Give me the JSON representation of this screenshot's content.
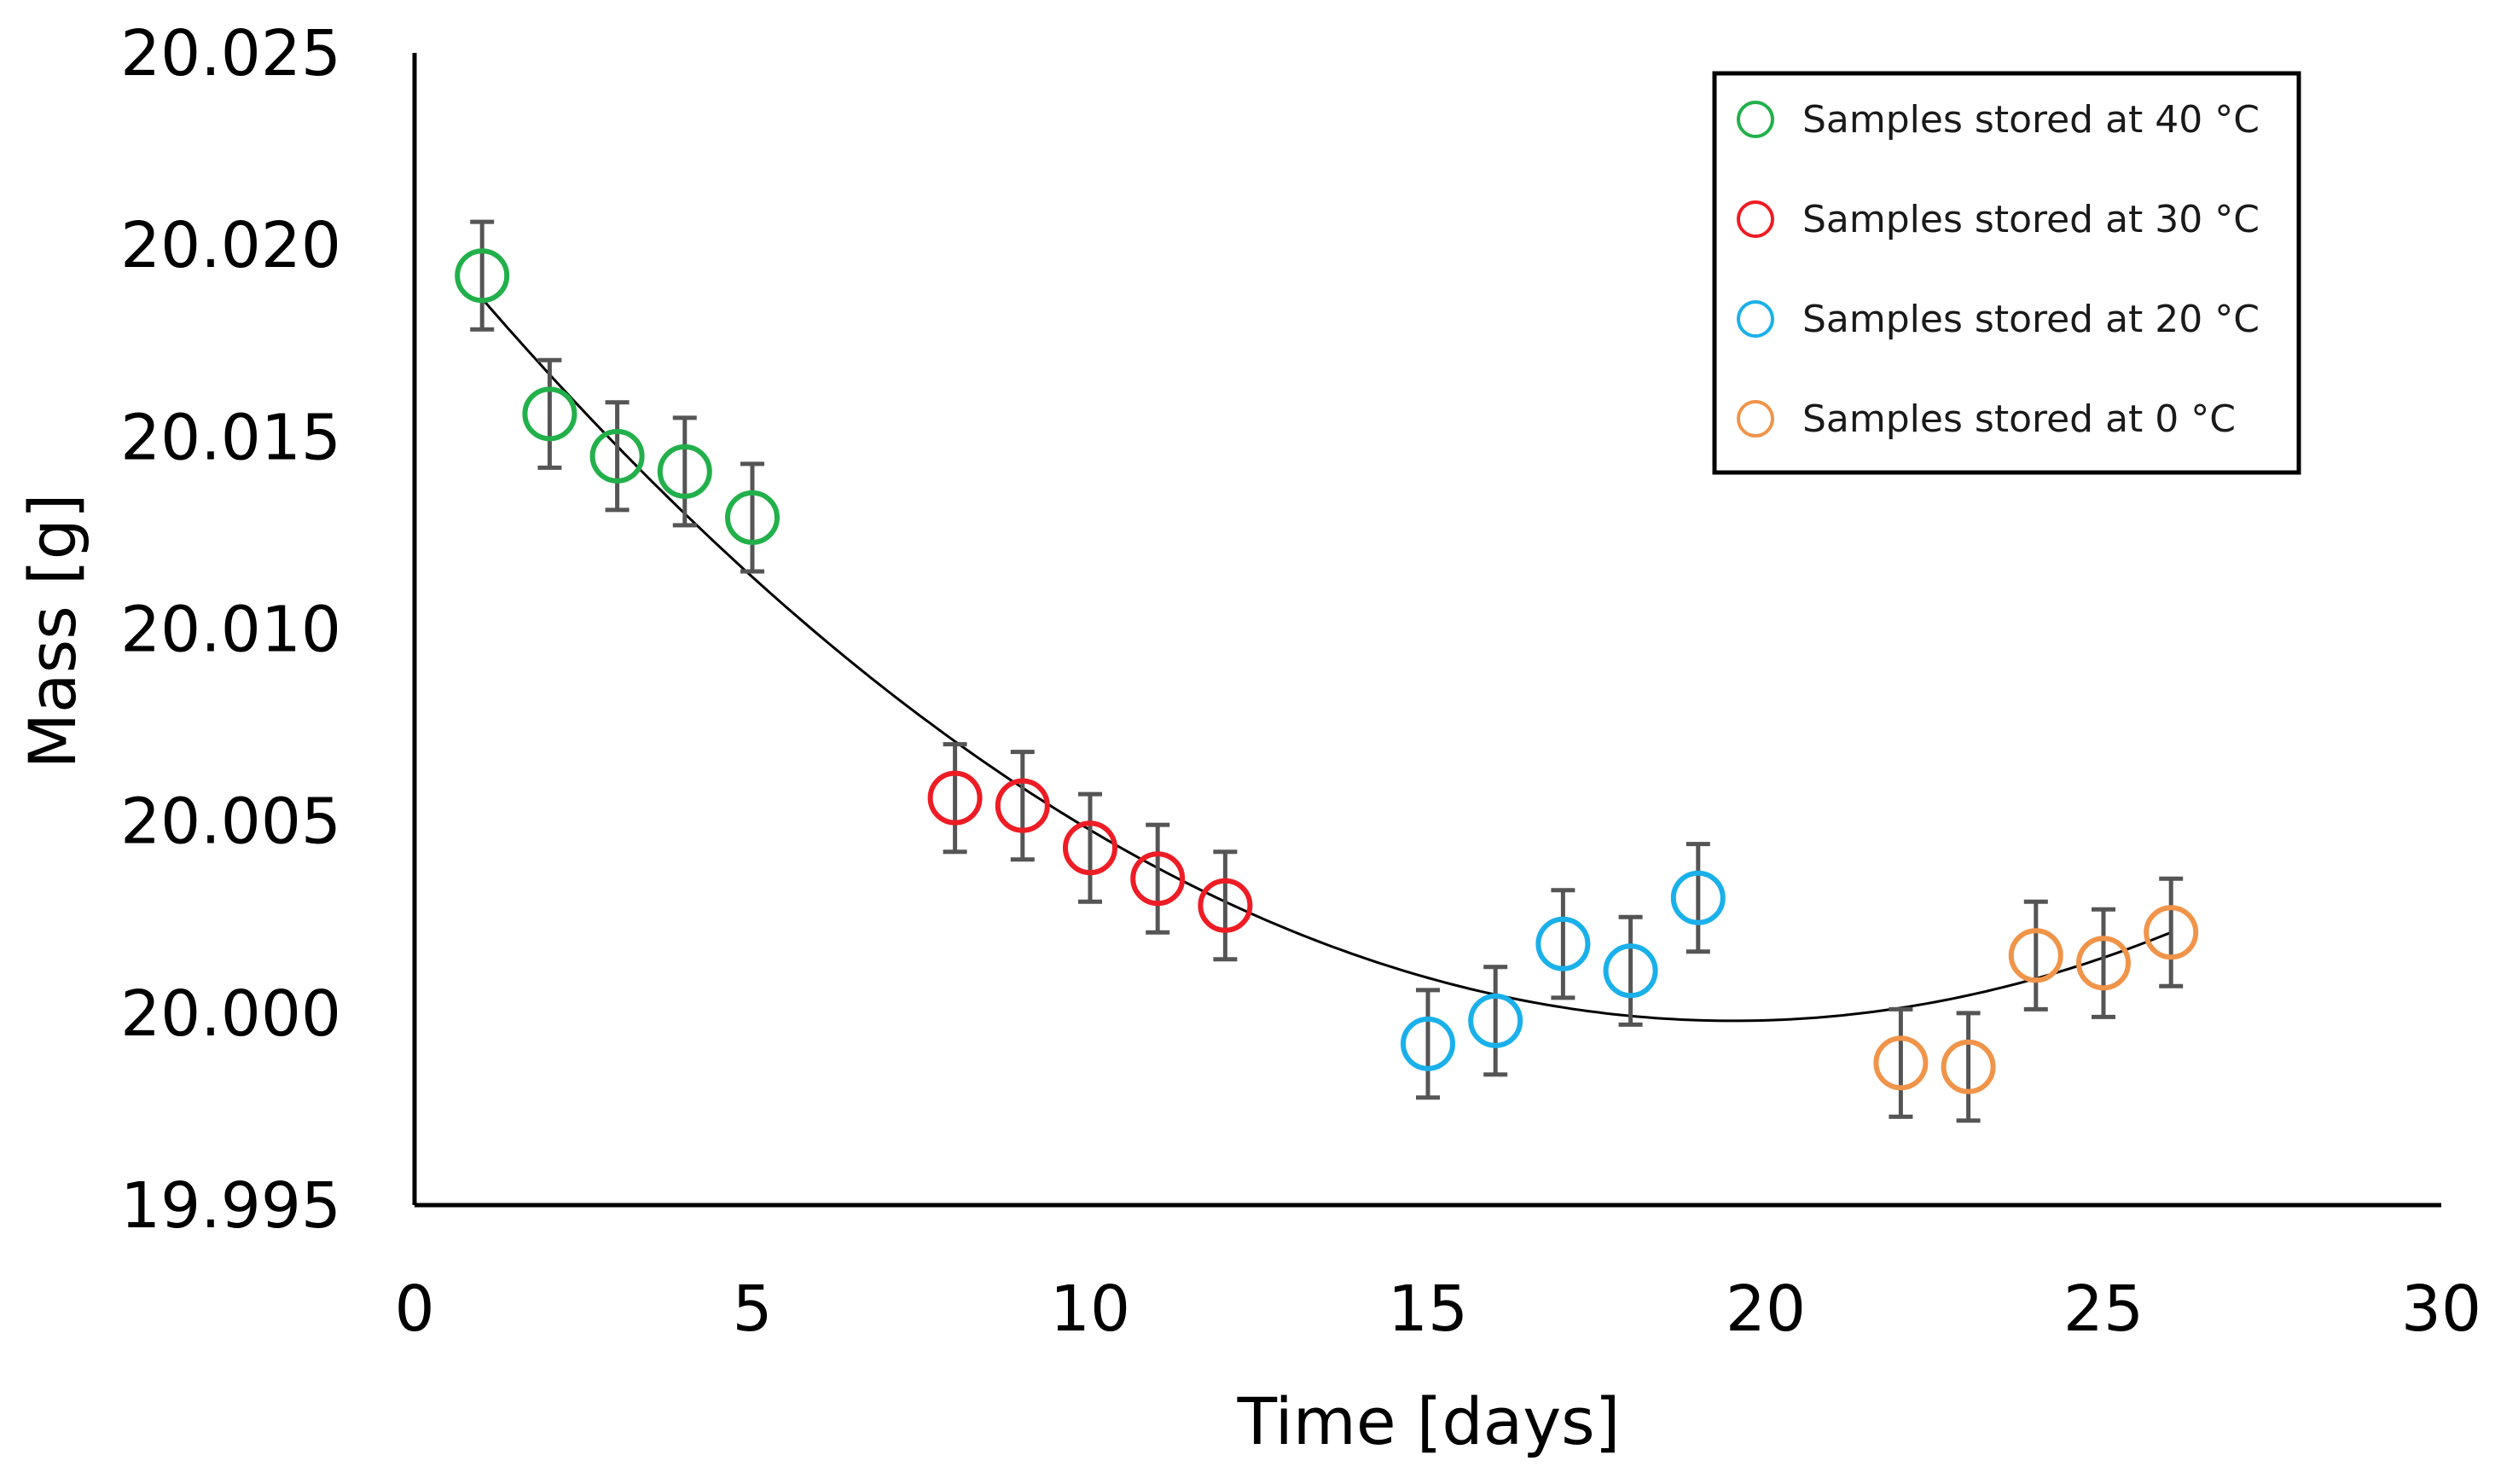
{
  "chart_data": {
    "type": "scatter",
    "title": "",
    "xlabel": "Time [days]",
    "ylabel": "Mass [g]",
    "xlim": [
      0,
      30
    ],
    "ylim": [
      19.995,
      20.025
    ],
    "x_ticks": [
      0,
      5,
      10,
      15,
      20,
      25,
      30
    ],
    "x_tick_labels": [
      "0",
      "5",
      "10",
      "15",
      "20",
      "25",
      "30"
    ],
    "y_ticks": [
      19.995,
      20.0,
      20.005,
      20.01,
      20.015,
      20.02,
      20.025
    ],
    "y_tick_labels": [
      "19.995",
      "20.000",
      "20.005",
      "20.010",
      "20.015",
      "20.020",
      "20.025"
    ],
    "grid": false,
    "legend_position": "top-right",
    "error_bar": 0.0014,
    "series": [
      {
        "name": "Samples stored at 40 °C",
        "color": "#22b04b",
        "x": [
          1,
          2,
          3,
          4,
          5
        ],
        "y": [
          20.0192,
          20.0156,
          20.0145,
          20.0141,
          20.0129
        ]
      },
      {
        "name": "Samples stored at 30 °C",
        "color": "#ee1c24",
        "x": [
          8,
          9,
          10,
          11,
          12
        ],
        "y": [
          20.0056,
          20.0054,
          20.0043,
          20.0035,
          20.0028
        ]
      },
      {
        "name": "Samples stored at 20 °C",
        "color": "#1ab0ea",
        "x": [
          15,
          16,
          17,
          18,
          19
        ],
        "y": [
          19.9992,
          19.9998,
          20.0018,
          20.0011,
          20.003
        ]
      },
      {
        "name": "Samples stored at 0 °C",
        "color": "#f0944a",
        "x": [
          22,
          23,
          24,
          25,
          26
        ],
        "y": [
          19.9987,
          19.9986,
          20.0015,
          20.0013,
          20.0021
        ]
      }
    ],
    "trendline": {
      "type": "polynomial-2",
      "color": "#000000",
      "x_range": [
        1,
        26
      ],
      "points": [
        [
          1,
          20.0186
        ],
        [
          19.7,
          19.9998
        ],
        [
          26,
          20.0021
        ]
      ]
    }
  }
}
